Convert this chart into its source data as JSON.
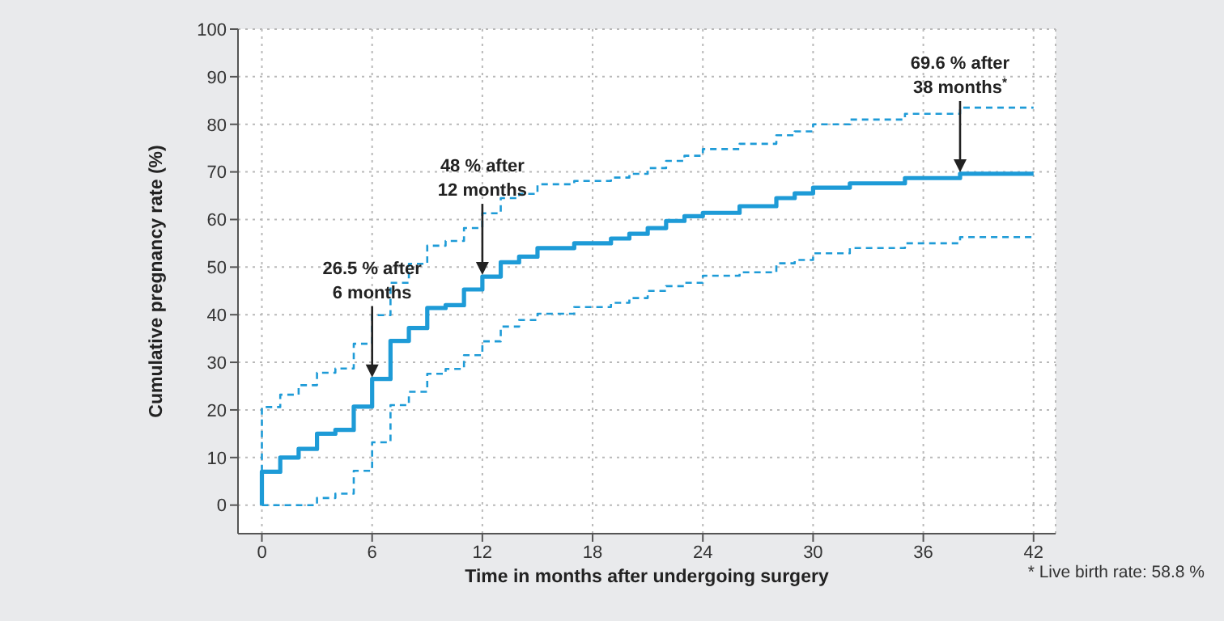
{
  "chart_data": {
    "type": "step",
    "xlabel": "Time in months after undergoing surgery",
    "ylabel": "Cumulative pregnancy rate (%)",
    "xlim": [
      -1.3,
      43.2
    ],
    "ylim": [
      -6,
      100
    ],
    "xticks": [
      0,
      6,
      12,
      18,
      24,
      30,
      36,
      42
    ],
    "yticks": [
      0,
      10,
      20,
      30,
      40,
      50,
      60,
      70,
      80,
      90,
      100
    ],
    "grid": true,
    "marker": "none",
    "series": [
      {
        "color": "#1e9bd7",
        "line_style": "solid",
        "x": [
          0,
          0,
          1,
          2,
          3,
          4,
          5,
          6,
          7,
          8,
          9,
          10,
          11,
          12,
          13,
          14,
          15,
          17,
          19,
          20,
          21,
          22,
          23,
          24,
          26,
          28,
          29,
          30,
          32,
          35,
          38,
          42
        ],
        "values": [
          0,
          7,
          10,
          11.8,
          15,
          15.8,
          20.7,
          26.5,
          34.5,
          37.2,
          41.4,
          42,
          45.3,
          48,
          51,
          52.2,
          54,
          55,
          56,
          57,
          58.2,
          59.7,
          60.7,
          61.4,
          62.8,
          64.5,
          65.5,
          66.7,
          67.6,
          68.7,
          69.6,
          69.6
        ]
      },
      {
        "color": "#1e9bd7",
        "line_style": "dashed",
        "x": [
          0,
          0,
          1,
          2,
          3,
          4,
          5,
          6,
          7,
          8,
          9,
          10,
          11,
          12,
          13,
          14,
          15,
          17,
          19,
          20,
          21,
          22,
          23,
          24,
          26,
          28,
          29,
          30,
          32,
          35,
          38,
          42
        ],
        "values": [
          0,
          20.6,
          23.2,
          25.2,
          27.8,
          28.7,
          33.9,
          39.9,
          46.7,
          50.7,
          54.5,
          55.5,
          58.2,
          61.3,
          64.5,
          65.4,
          67.4,
          68.1,
          68.8,
          69.6,
          70.8,
          72.3,
          73.4,
          74.8,
          75.9,
          77.7,
          78.5,
          80,
          81,
          82.2,
          83.5,
          83.5
        ]
      },
      {
        "color": "#1e9bd7",
        "line_style": "dashed",
        "x": [
          0,
          3,
          4,
          5,
          6,
          7,
          8,
          9,
          10,
          11,
          12,
          13,
          14,
          15,
          17,
          19,
          20,
          21,
          22,
          23,
          24,
          26,
          28,
          29,
          30,
          32,
          35,
          38,
          42
        ],
        "values": [
          0,
          1.5,
          2.4,
          7.2,
          13.2,
          21,
          23.8,
          27.6,
          28.6,
          31.5,
          34.4,
          37.5,
          38.9,
          40.2,
          41.6,
          42.5,
          43.5,
          45,
          46,
          46.7,
          48.2,
          48.9,
          50.8,
          51.5,
          52.9,
          54,
          55,
          56.3,
          56.3
        ]
      }
    ],
    "annotations": [
      {
        "text": "26.5 % after\n6 months",
        "x": 6,
        "y": 26.5
      },
      {
        "text": "48 % after\n12 months",
        "x": 12,
        "y": 48
      },
      {
        "text": "69.6 % after\n38 months$^{*}$",
        "x": 38,
        "y": 69.6
      },
      "* Live birth rate: 58.8 %"
    ]
  }
}
